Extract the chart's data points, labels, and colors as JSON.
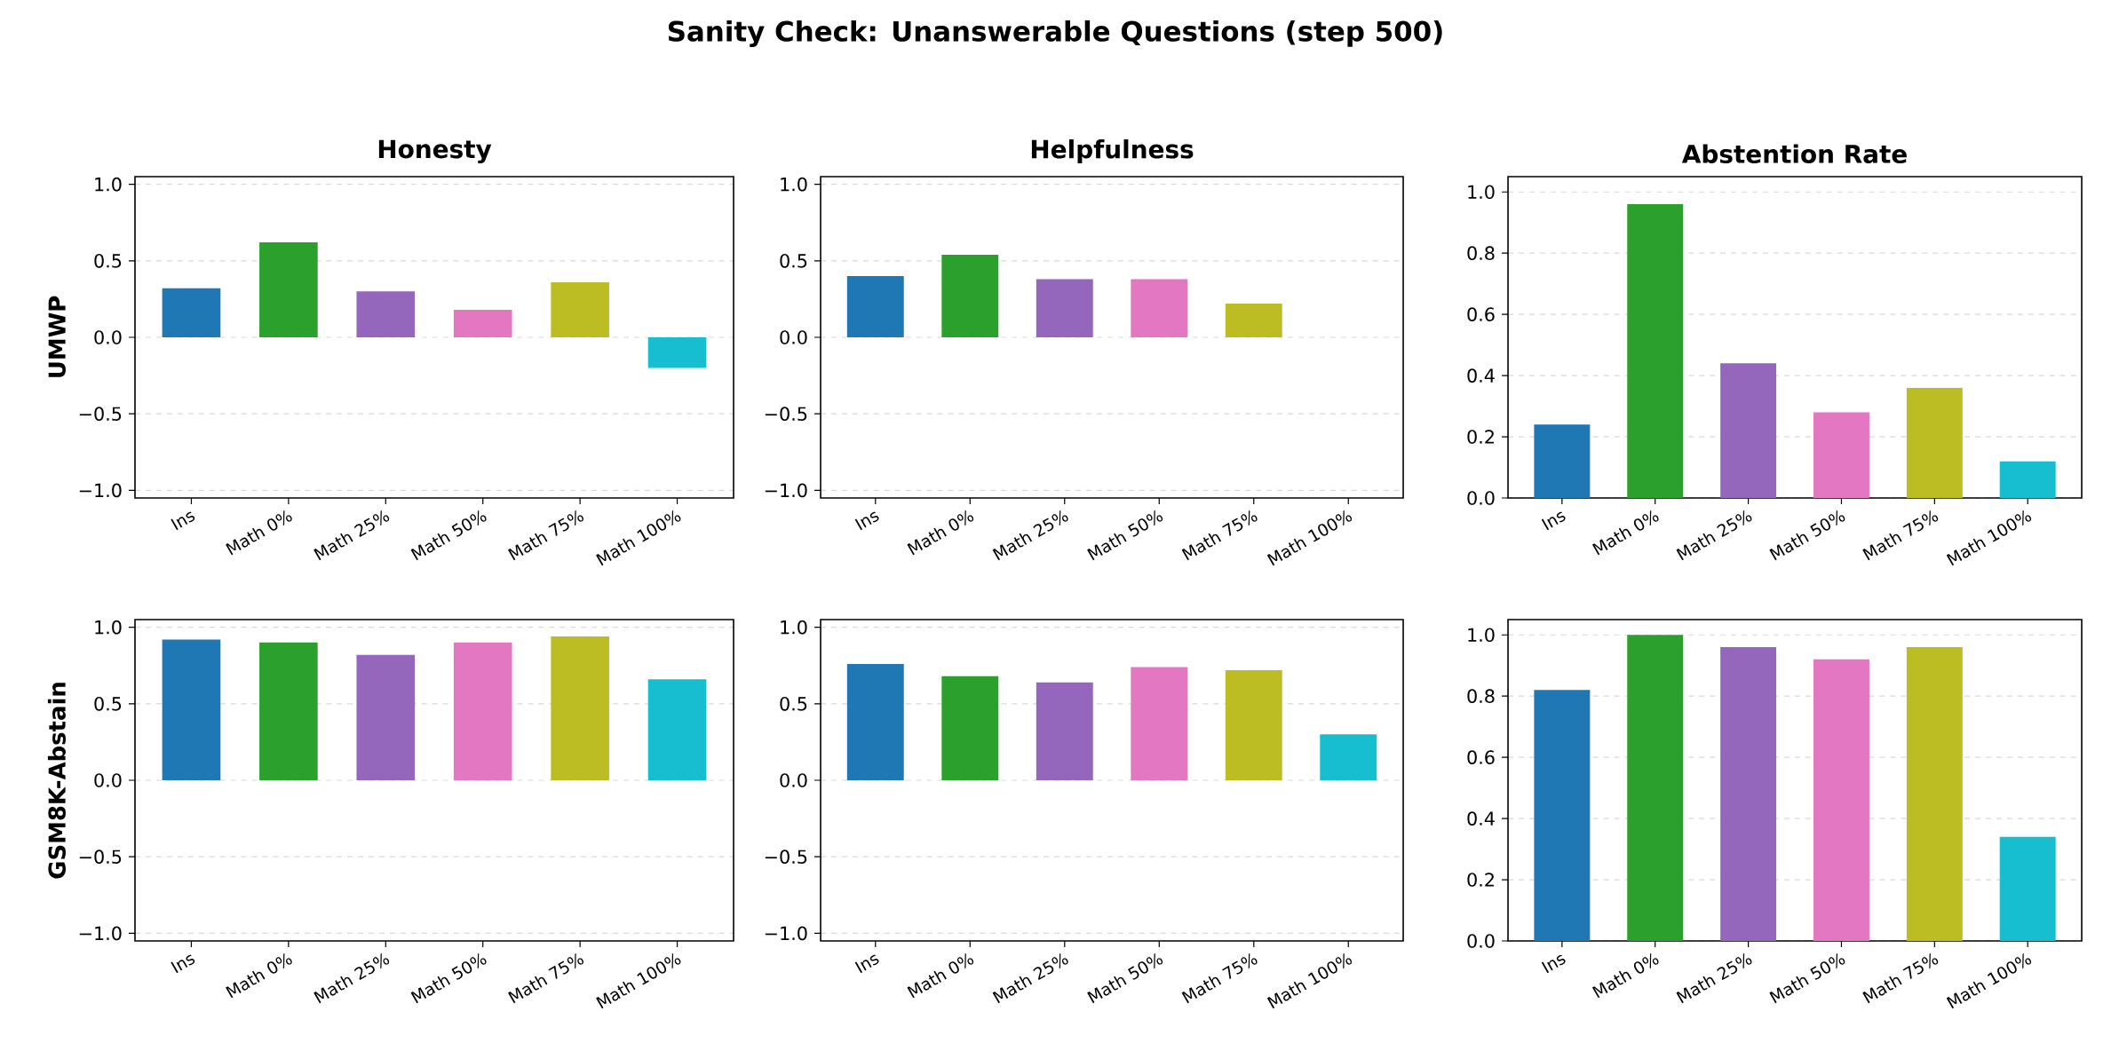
{
  "chart_data": [
    {
      "type": "bar",
      "title": "Honesty",
      "ylabel": "UMWP",
      "annotations": [
        "Sanity Check: Unanswerable Questions (step 500)"
      ],
      "categories": [
        "Ins",
        "Math 0%",
        "Math 25%",
        "Math 50%",
        "Math 75%",
        "Math 100%"
      ],
      "values": [
        0.32,
        0.62,
        0.3,
        0.18,
        0.36,
        -0.2
      ],
      "colors": [
        "#1f77b4",
        "#2ca02c",
        "#9467bd",
        "#e377c2",
        "#bcbd22",
        "#17becf"
      ],
      "ylim": [
        -1.05,
        1.05
      ],
      "yticks": [
        {
          "value": -1.0,
          "label": "−1.0"
        },
        {
          "value": -0.5,
          "label": "−0.5"
        },
        {
          "value": 0.0,
          "label": "0.0"
        },
        {
          "value": 0.5,
          "label": "0.5"
        },
        {
          "value": 1.0,
          "label": "1.0"
        }
      ],
      "grid": "y"
    },
    {
      "type": "bar",
      "title": "Helpfulness",
      "categories": [
        "Ins",
        "Math 0%",
        "Math 25%",
        "Math 50%",
        "Math 75%",
        "Math 100%"
      ],
      "values": [
        0.4,
        0.54,
        0.38,
        0.38,
        0.22,
        0.0
      ],
      "colors": [
        "#1f77b4",
        "#2ca02c",
        "#9467bd",
        "#e377c2",
        "#bcbd22",
        "#17becf"
      ],
      "ylim": [
        -1.05,
        1.05
      ],
      "yticks": [
        {
          "value": -1.0,
          "label": "−1.0"
        },
        {
          "value": -0.5,
          "label": "−0.5"
        },
        {
          "value": 0.0,
          "label": "0.0"
        },
        {
          "value": 0.5,
          "label": "0.5"
        },
        {
          "value": 1.0,
          "label": "1.0"
        }
      ],
      "grid": "y"
    },
    {
      "type": "bar",
      "title": "Abstention Rate",
      "categories": [
        "Ins",
        "Math 0%",
        "Math 25%",
        "Math 50%",
        "Math 75%",
        "Math 100%"
      ],
      "values": [
        0.24,
        0.96,
        0.44,
        0.28,
        0.36,
        0.12
      ],
      "colors": [
        "#1f77b4",
        "#2ca02c",
        "#9467bd",
        "#e377c2",
        "#bcbd22",
        "#17becf"
      ],
      "ylim": [
        0,
        1.05
      ],
      "yticks": [
        {
          "value": 0.0,
          "label": "0.0"
        },
        {
          "value": 0.2,
          "label": "0.2"
        },
        {
          "value": 0.4,
          "label": "0.4"
        },
        {
          "value": 0.6,
          "label": "0.6"
        },
        {
          "value": 0.8,
          "label": "0.8"
        },
        {
          "value": 1.0,
          "label": "1.0"
        }
      ],
      "grid": "y"
    },
    {
      "type": "bar",
      "ylabel": "GSM8K-Abstain",
      "categories": [
        "Ins",
        "Math 0%",
        "Math 25%",
        "Math 50%",
        "Math 75%",
        "Math 100%"
      ],
      "values": [
        0.92,
        0.9,
        0.82,
        0.9,
        0.94,
        0.66
      ],
      "colors": [
        "#1f77b4",
        "#2ca02c",
        "#9467bd",
        "#e377c2",
        "#bcbd22",
        "#17becf"
      ],
      "ylim": [
        -1.05,
        1.05
      ],
      "yticks": [
        {
          "value": -1.0,
          "label": "−1.0"
        },
        {
          "value": -0.5,
          "label": "−0.5"
        },
        {
          "value": 0.0,
          "label": "0.0"
        },
        {
          "value": 0.5,
          "label": "0.5"
        },
        {
          "value": 1.0,
          "label": "1.0"
        }
      ],
      "grid": "y"
    },
    {
      "type": "bar",
      "categories": [
        "Ins",
        "Math 0%",
        "Math 25%",
        "Math 50%",
        "Math 75%",
        "Math 100%"
      ],
      "values": [
        0.76,
        0.68,
        0.64,
        0.74,
        0.72,
        0.3
      ],
      "colors": [
        "#1f77b4",
        "#2ca02c",
        "#9467bd",
        "#e377c2",
        "#bcbd22",
        "#17becf"
      ],
      "ylim": [
        -1.05,
        1.05
      ],
      "yticks": [
        {
          "value": -1.0,
          "label": "−1.0"
        },
        {
          "value": -0.5,
          "label": "−0.5"
        },
        {
          "value": 0.0,
          "label": "0.0"
        },
        {
          "value": 0.5,
          "label": "0.5"
        },
        {
          "value": 1.0,
          "label": "1.0"
        }
      ],
      "grid": "y"
    },
    {
      "type": "bar",
      "categories": [
        "Ins",
        "Math 0%",
        "Math 25%",
        "Math 50%",
        "Math 75%",
        "Math 100%"
      ],
      "values": [
        0.82,
        1.0,
        0.96,
        0.92,
        0.96,
        0.34
      ],
      "colors": [
        "#1f77b4",
        "#2ca02c",
        "#9467bd",
        "#e377c2",
        "#bcbd22",
        "#17becf"
      ],
      "ylim": [
        0,
        1.05
      ],
      "yticks": [
        {
          "value": 0.0,
          "label": "0.0"
        },
        {
          "value": 0.2,
          "label": "0.2"
        },
        {
          "value": 0.4,
          "label": "0.4"
        },
        {
          "value": 0.6,
          "label": "0.6"
        },
        {
          "value": 0.8,
          "label": "0.8"
        },
        {
          "value": 1.0,
          "label": "1.0"
        }
      ],
      "grid": "y"
    }
  ]
}
